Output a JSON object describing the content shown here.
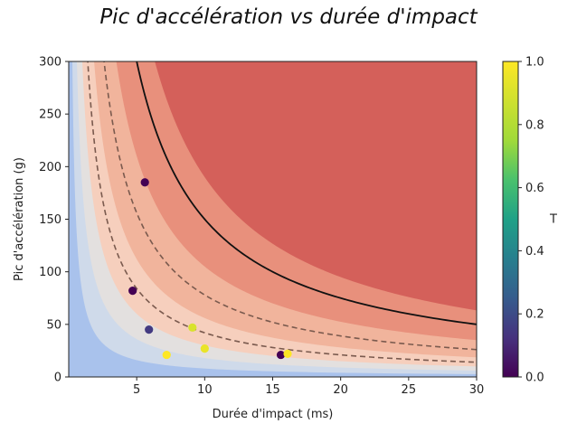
{
  "chart_data": {
    "type": "scatter",
    "title": "Pic d'accélération vs durée d'impact",
    "xlabel": "Durée d'impact (ms)",
    "ylabel": "Pic d'accélération (g)",
    "xlim": [
      0,
      30
    ],
    "ylim": [
      0,
      300
    ],
    "xticks": [
      5,
      10,
      15,
      20,
      25,
      30
    ],
    "yticks": [
      0,
      50,
      100,
      150,
      200,
      250,
      300
    ],
    "colorbar": {
      "label": "T",
      "range": [
        0.0,
        1.0
      ],
      "ticks": [
        "0.0",
        "0.2",
        "0.4",
        "0.6",
        "0.8",
        "1.0"
      ],
      "colormap": "viridis"
    },
    "points": [
      {
        "x": 5.6,
        "y": 185,
        "t": 0.0
      },
      {
        "x": 4.7,
        "y": 82,
        "t": 0.0
      },
      {
        "x": 5.9,
        "y": 45,
        "t": 0.15
      },
      {
        "x": 7.2,
        "y": 21,
        "t": 1.0
      },
      {
        "x": 9.1,
        "y": 47,
        "t": 0.9
      },
      {
        "x": 10.0,
        "y": 27,
        "t": 0.95
      },
      {
        "x": 15.6,
        "y": 21,
        "t": 0.0
      },
      {
        "x": 16.1,
        "y": 22,
        "t": 1.0
      }
    ],
    "curves": [
      {
        "style": "solid",
        "color": "#111111",
        "k": 1500
      },
      {
        "style": "dashed",
        "color": "#7a5a4e",
        "k": 780
      },
      {
        "style": "dashed",
        "color": "#7a5a4e",
        "k": 420
      }
    ],
    "regions": [
      {
        "k": 4800,
        "color": "#d4605a"
      },
      {
        "k": 1900,
        "color": "#e8907c"
      },
      {
        "k": 1050,
        "color": "#f1b49c"
      },
      {
        "k": 560,
        "color": "#f6cfbd"
      },
      {
        "k": 300,
        "color": "#e3e0df"
      },
      {
        "k": 180,
        "color": "#cfdaea"
      },
      {
        "k": 80,
        "color": "#a9c2ec"
      }
    ],
    "grid": false
  }
}
